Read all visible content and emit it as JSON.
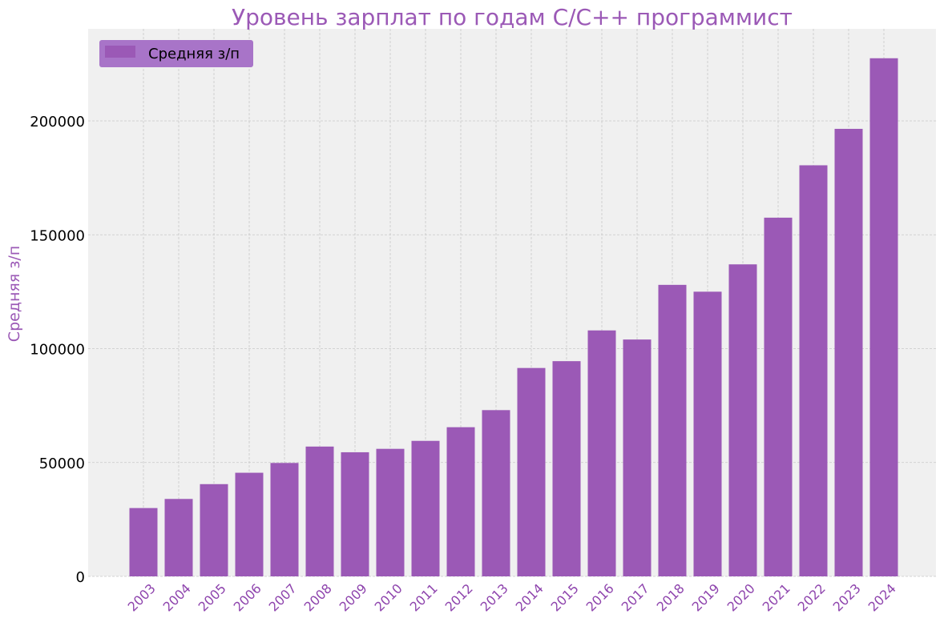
{
  "colors": {
    "bar": "#9b59b6",
    "title": "#9b59b6",
    "axis_label": "#9b59b6",
    "x_tick_label": "#8e44ad",
    "y_tick_label": "#000000",
    "plot_background": "#f0f0f0",
    "grid": "#c8c8c8",
    "legend_background": "#a874c8",
    "legend_patch": "#9b59b6",
    "legend_text": "#000000"
  },
  "chart_data": {
    "type": "bar",
    "title": "Уровень зарплат по годам C/C++ программист",
    "xlabel": "",
    "ylabel": "Средняя з/п",
    "categories": [
      "2003",
      "2004",
      "2005",
      "2006",
      "2007",
      "2008",
      "2009",
      "2010",
      "2011",
      "2012",
      "2013",
      "2014",
      "2015",
      "2016",
      "2017",
      "2018",
      "2019",
      "2020",
      "2021",
      "2022",
      "2023",
      "2024"
    ],
    "series": [
      {
        "name": "Средняя з/п",
        "values": [
          30000,
          34000,
          40500,
          45500,
          49800,
          57000,
          54500,
          56000,
          59500,
          65500,
          73000,
          91500,
          94500,
          108000,
          104000,
          128000,
          125000,
          137000,
          157500,
          180500,
          196500,
          227500
        ]
      }
    ],
    "ylim": [
      0,
      240000
    ],
    "yticks": [
      0,
      50000,
      100000,
      150000,
      200000
    ],
    "ytick_labels": [
      "0",
      "50000",
      "100000",
      "150000",
      "200000"
    ],
    "grid": true,
    "legend": {
      "position": "top-left",
      "entries": [
        "Средняя з/п"
      ]
    }
  }
}
